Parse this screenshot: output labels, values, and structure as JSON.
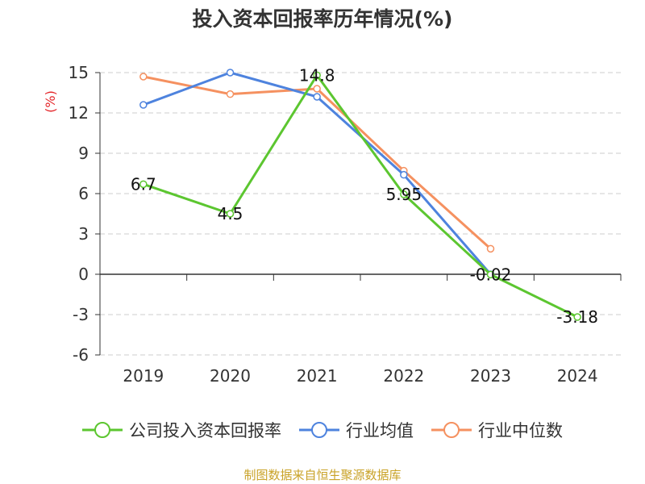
{
  "chart_data": {
    "type": "line",
    "title": "投入资本回报率历年情况(%)",
    "ylabel": "(%)",
    "xlabel": "",
    "categories": [
      "2019",
      "2020",
      "2021",
      "2022",
      "2023",
      "2024"
    ],
    "ylim": [
      -6,
      15
    ],
    "yticks": [
      -6,
      -3,
      0,
      3,
      6,
      9,
      12,
      15
    ],
    "grid": true,
    "legend_position": "bottom",
    "series": [
      {
        "name": "公司投入资本回报率",
        "color": "#5cc630",
        "values": [
          6.7,
          4.5,
          14.8,
          5.95,
          -0.02,
          -3.18
        ],
        "labels": [
          "6.7",
          "4.5",
          "14.8",
          "5.95",
          "-0.02",
          "-3.18"
        ]
      },
      {
        "name": "行业均值",
        "color": "#4e83de",
        "values": [
          12.6,
          15.0,
          13.2,
          7.4,
          0.0,
          null
        ]
      },
      {
        "name": "行业中位数",
        "color": "#f59160",
        "values": [
          14.7,
          13.4,
          13.8,
          7.7,
          1.9,
          null
        ]
      }
    ]
  },
  "source": "制图数据来自恒生聚源数据库"
}
